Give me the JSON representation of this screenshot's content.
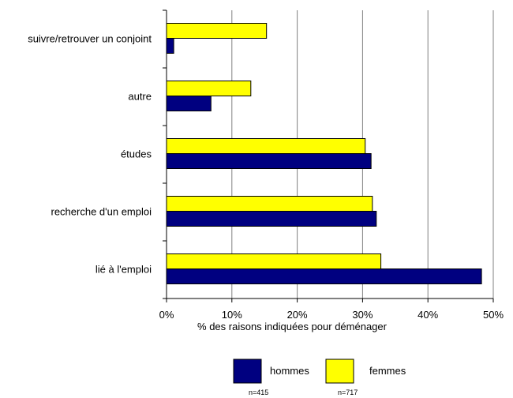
{
  "chart_data": {
    "type": "bar",
    "orientation": "horizontal",
    "categories": [
      "suivre/retrouver un conjoint",
      "autre",
      "études",
      "recherche d'un emploi",
      "lié à l'emploi"
    ],
    "series": [
      {
        "name": "femmes",
        "values": [
          15.3,
          12.9,
          30.4,
          31.5,
          32.8
        ],
        "color": "#ffff00"
      },
      {
        "name": "hommes",
        "values": [
          1.1,
          6.8,
          31.3,
          32.1,
          48.2
        ],
        "color": "#000080"
      }
    ],
    "xlabel": "% des raisons indiquées pour déménager",
    "ylabel": "",
    "title": "",
    "xlim": [
      0,
      50
    ],
    "xticks": [
      "0%",
      "10%",
      "20%",
      "30%",
      "40%",
      "50%"
    ],
    "grid": "vertical",
    "legend": {
      "placement": "bottom",
      "entries": [
        {
          "label": "hommes",
          "note": "n=415",
          "color": "#000080"
        },
        {
          "label": "femmes",
          "note": "n=717",
          "color": "#ffff00"
        }
      ]
    }
  }
}
